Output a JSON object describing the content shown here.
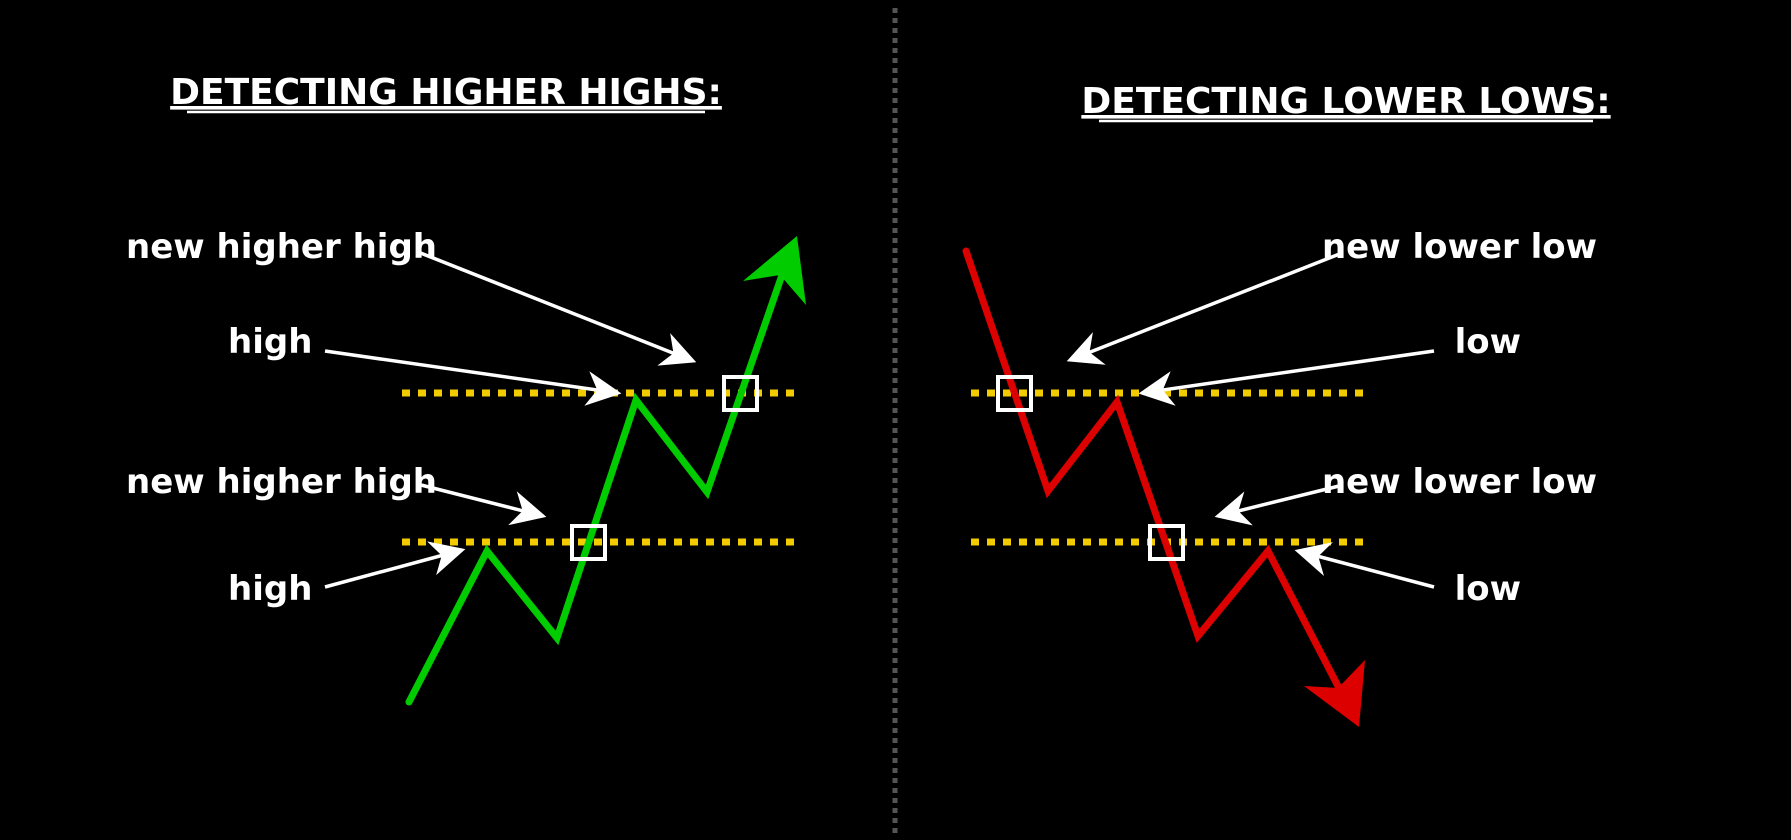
{
  "left_panel": {
    "title": "DETECTING HIGHER HIGHS:",
    "labels": {
      "new_higher_high_top": "new higher high",
      "high_top": "high",
      "new_higher_high_bottom": "new higher high",
      "high_bottom": "high"
    }
  },
  "right_panel": {
    "title": "DETECTING LOWER LOWS:",
    "labels": {
      "new_lower_low_top": "new lower low",
      "low_top": "low",
      "new_lower_low_bottom": "new lower low",
      "low_bottom": "low"
    }
  },
  "colors": {
    "background": "#000000",
    "uptrend": "#00cc00",
    "downtrend": "#dd0000",
    "level_line": "#f2cc00",
    "divider": "#555555",
    "text": "#ffffff"
  }
}
